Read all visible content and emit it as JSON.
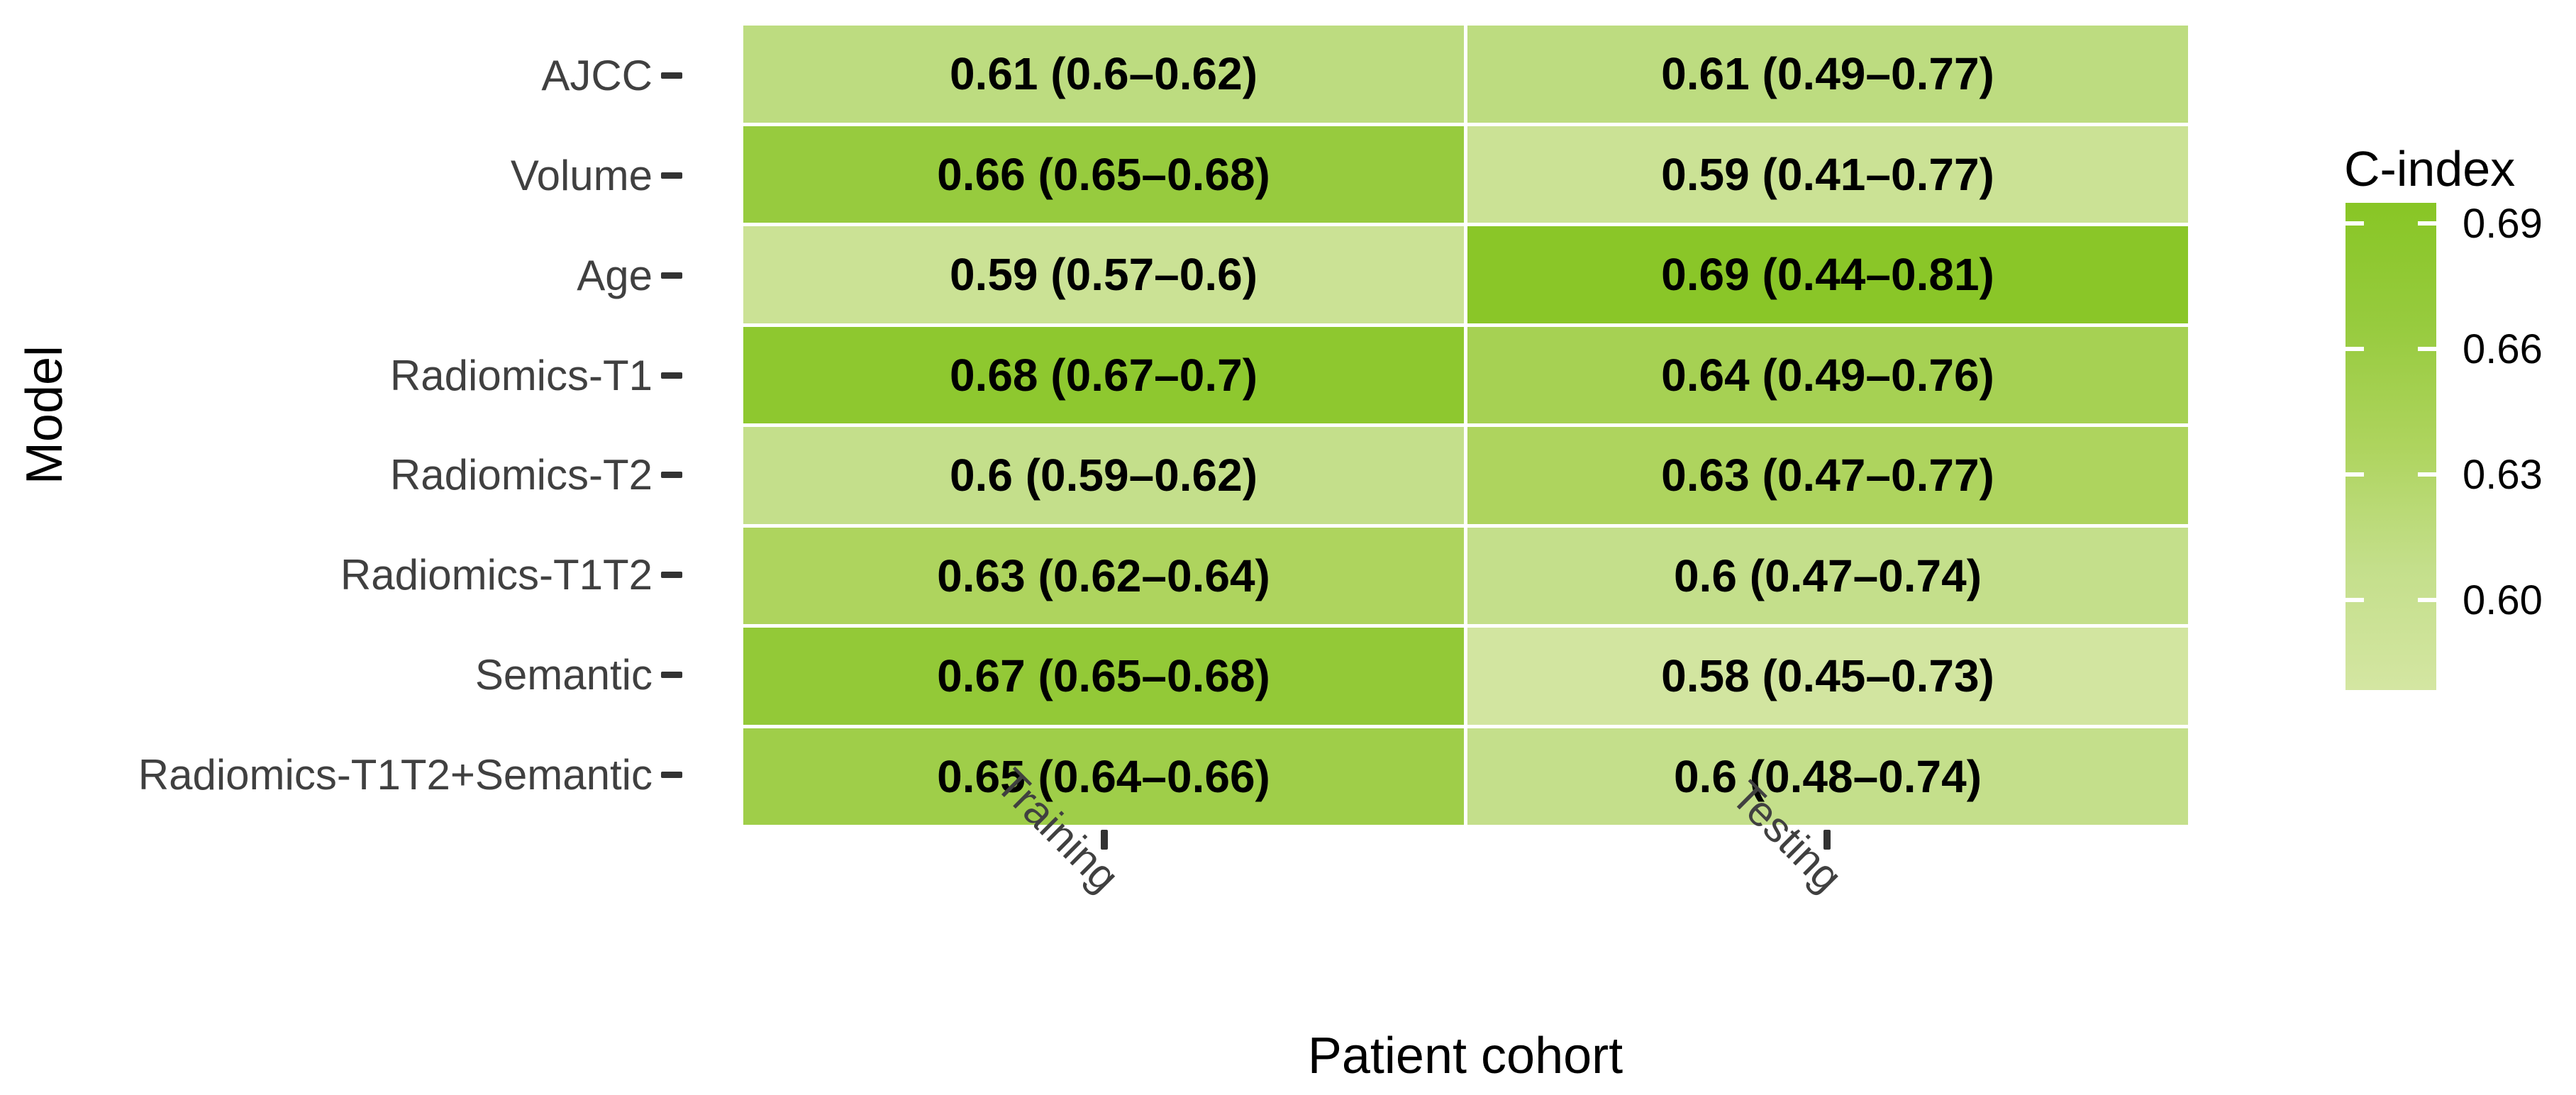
{
  "figure": {
    "x_axis_title": "Patient cohort",
    "y_axis_title": "Model"
  },
  "legend": {
    "title": "C-index",
    "ticks": [
      {
        "label": "0.69"
      },
      {
        "label": "0.66"
      },
      {
        "label": "0.63"
      },
      {
        "label": "0.60"
      }
    ],
    "gradient": [
      "#88c625",
      "#97cb3e",
      "#aed45e",
      "#c4df8b",
      "#d4e6a2"
    ]
  },
  "chart_data": {
    "type": "heatmap",
    "title": "",
    "xlabel": "Patient cohort",
    "ylabel": "Model",
    "legend_title": "C-index",
    "legend_position": "right",
    "grid": false,
    "columns": [
      "Training",
      "Testing"
    ],
    "color_scale": {
      "metric": "C-index",
      "min": 0.58,
      "max": 0.69,
      "low_color": "#d2e5a0",
      "high_color": "#8ac628",
      "tick_values": [
        0.69,
        0.66,
        0.63,
        0.6
      ]
    },
    "rows": [
      {
        "label": "AJCC",
        "cells": [
          {
            "column": "Training",
            "value": 0.61,
            "ci_low": 0.6,
            "ci_high": 0.62,
            "text": "0.61 (0.6–0.62)",
            "fill": "#bddc80"
          },
          {
            "column": "Testing",
            "value": 0.61,
            "ci_low": 0.49,
            "ci_high": 0.77,
            "text": "0.61 (0.49–0.77)",
            "fill": "#bddc80"
          }
        ]
      },
      {
        "label": "Volume",
        "cells": [
          {
            "column": "Training",
            "value": 0.66,
            "ci_low": 0.65,
            "ci_high": 0.68,
            "text": "0.66 (0.65–0.68)",
            "fill": "#97cb3e"
          },
          {
            "column": "Testing",
            "value": 0.59,
            "ci_low": 0.41,
            "ci_high": 0.77,
            "text": "0.59 (0.41–0.77)",
            "fill": "#cbe295"
          }
        ]
      },
      {
        "label": "Age",
        "cells": [
          {
            "column": "Training",
            "value": 0.59,
            "ci_low": 0.57,
            "ci_high": 0.6,
            "text": "0.59 (0.57–0.6)",
            "fill": "#cbe295"
          },
          {
            "column": "Testing",
            "value": 0.69,
            "ci_low": 0.44,
            "ci_high": 0.81,
            "text": "0.69 (0.44–0.81)",
            "fill": "#8ac628"
          }
        ]
      },
      {
        "label": "Radiomics-T1",
        "cells": [
          {
            "column": "Training",
            "value": 0.68,
            "ci_low": 0.67,
            "ci_high": 0.7,
            "text": "0.68 (0.67–0.7)",
            "fill": "#8ec82f"
          },
          {
            "column": "Testing",
            "value": 0.64,
            "ci_low": 0.49,
            "ci_high": 0.76,
            "text": "0.64 (0.49–0.76)",
            "fill": "#a6d153"
          }
        ]
      },
      {
        "label": "Radiomics-T2",
        "cells": [
          {
            "column": "Training",
            "value": 0.6,
            "ci_low": 0.59,
            "ci_high": 0.62,
            "text": "0.6 (0.59–0.62)",
            "fill": "#c4df8b"
          },
          {
            "column": "Testing",
            "value": 0.63,
            "ci_low": 0.47,
            "ci_high": 0.77,
            "text": "0.63 (0.47–0.77)",
            "fill": "#aed45e"
          }
        ]
      },
      {
        "label": "Radiomics-T1T2",
        "cells": [
          {
            "column": "Training",
            "value": 0.63,
            "ci_low": 0.62,
            "ci_high": 0.64,
            "text": "0.63 (0.62–0.64)",
            "fill": "#aed45e"
          },
          {
            "column": "Testing",
            "value": 0.6,
            "ci_low": 0.47,
            "ci_high": 0.74,
            "text": "0.6 (0.47–0.74)",
            "fill": "#c4df8b"
          }
        ]
      },
      {
        "label": "Semantic",
        "cells": [
          {
            "column": "Training",
            "value": 0.67,
            "ci_low": 0.65,
            "ci_high": 0.68,
            "text": "0.67 (0.65–0.68)",
            "fill": "#93c937"
          },
          {
            "column": "Testing",
            "value": 0.58,
            "ci_low": 0.45,
            "ci_high": 0.73,
            "text": "0.58 (0.45–0.73)",
            "fill": "#d2e5a0"
          }
        ]
      },
      {
        "label": "Radiomics-T1T2+Semantic",
        "cells": [
          {
            "column": "Training",
            "value": 0.65,
            "ci_low": 0.64,
            "ci_high": 0.66,
            "text": "0.65 (0.64–0.66)",
            "fill": "#9fce49"
          },
          {
            "column": "Testing",
            "value": 0.6,
            "ci_low": 0.48,
            "ci_high": 0.74,
            "text": "0.6 (0.48–0.74)",
            "fill": "#c4df8b"
          }
        ]
      }
    ]
  }
}
